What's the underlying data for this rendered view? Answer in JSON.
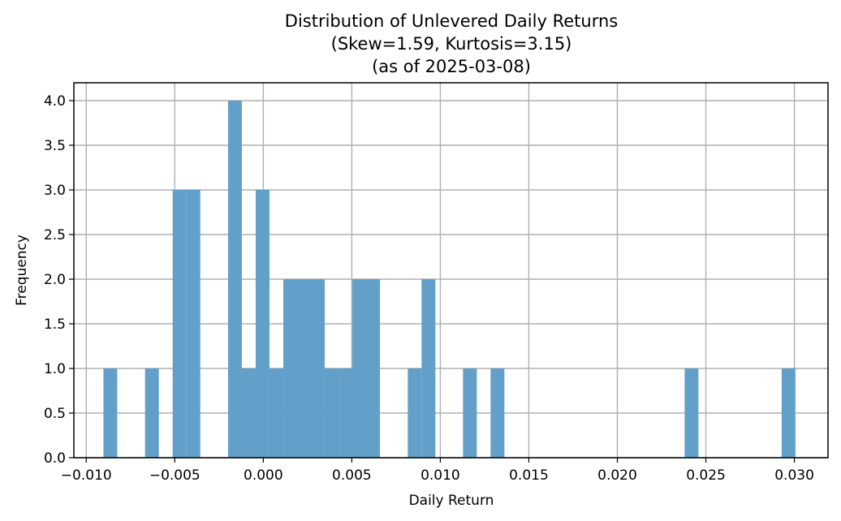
{
  "chart_data": {
    "type": "bar",
    "title_lines": [
      "Distribution of Unlevered Daily Returns",
      "(Skew=1.59, Kurtosis=3.15)",
      "(as of 2025-03-08)"
    ],
    "xlabel": "Daily Return",
    "ylabel": "Frequency",
    "xlim": [
      -0.0107,
      0.0319
    ],
    "ylim": [
      0,
      4.2
    ],
    "x_ticks": [
      -0.01,
      -0.005,
      0.0,
      0.005,
      0.01,
      0.015,
      0.02,
      0.025,
      0.03
    ],
    "x_tick_labels": [
      "−0.010",
      "−0.005",
      "0.000",
      "0.005",
      "0.010",
      "0.015",
      "0.020",
      "0.025",
      "0.030"
    ],
    "y_ticks": [
      0.0,
      0.5,
      1.0,
      1.5,
      2.0,
      2.5,
      3.0,
      3.5,
      4.0
    ],
    "y_tick_labels": [
      "0.0",
      "0.5",
      "1.0",
      "1.5",
      "2.0",
      "2.5",
      "3.0",
      "3.5",
      "4.0"
    ],
    "grid": true,
    "bar_color": "#62a0ca",
    "bins": [
      {
        "x0": -0.00903,
        "x1": -0.00825,
        "count": 1
      },
      {
        "x0": -0.00668,
        "x1": -0.0059,
        "count": 1
      },
      {
        "x0": -0.00512,
        "x1": -0.00434,
        "count": 3
      },
      {
        "x0": -0.00434,
        "x1": -0.00356,
        "count": 3
      },
      {
        "x0": -0.00199,
        "x1": -0.00121,
        "count": 4
      },
      {
        "x0": -0.00121,
        "x1": -0.00043,
        "count": 1
      },
      {
        "x0": -0.00043,
        "x1": 0.00035,
        "count": 3
      },
      {
        "x0": 0.00035,
        "x1": 0.00113,
        "count": 1
      },
      {
        "x0": 0.00113,
        "x1": 0.00191,
        "count": 2
      },
      {
        "x0": 0.00191,
        "x1": 0.00269,
        "count": 2
      },
      {
        "x0": 0.00269,
        "x1": 0.00347,
        "count": 2
      },
      {
        "x0": 0.00347,
        "x1": 0.00425,
        "count": 1
      },
      {
        "x0": 0.00425,
        "x1": 0.00503,
        "count": 1
      },
      {
        "x0": 0.00503,
        "x1": 0.00581,
        "count": 2
      },
      {
        "x0": 0.00581,
        "x1": 0.00659,
        "count": 2
      },
      {
        "x0": 0.00816,
        "x1": 0.00894,
        "count": 1
      },
      {
        "x0": 0.00894,
        "x1": 0.00972,
        "count": 2
      },
      {
        "x0": 0.01128,
        "x1": 0.01206,
        "count": 1
      },
      {
        "x0": 0.01284,
        "x1": 0.01362,
        "count": 1
      },
      {
        "x0": 0.0238,
        "x1": 0.02458,
        "count": 1
      },
      {
        "x0": 0.02928,
        "x1": 0.03006,
        "count": 1
      }
    ]
  }
}
